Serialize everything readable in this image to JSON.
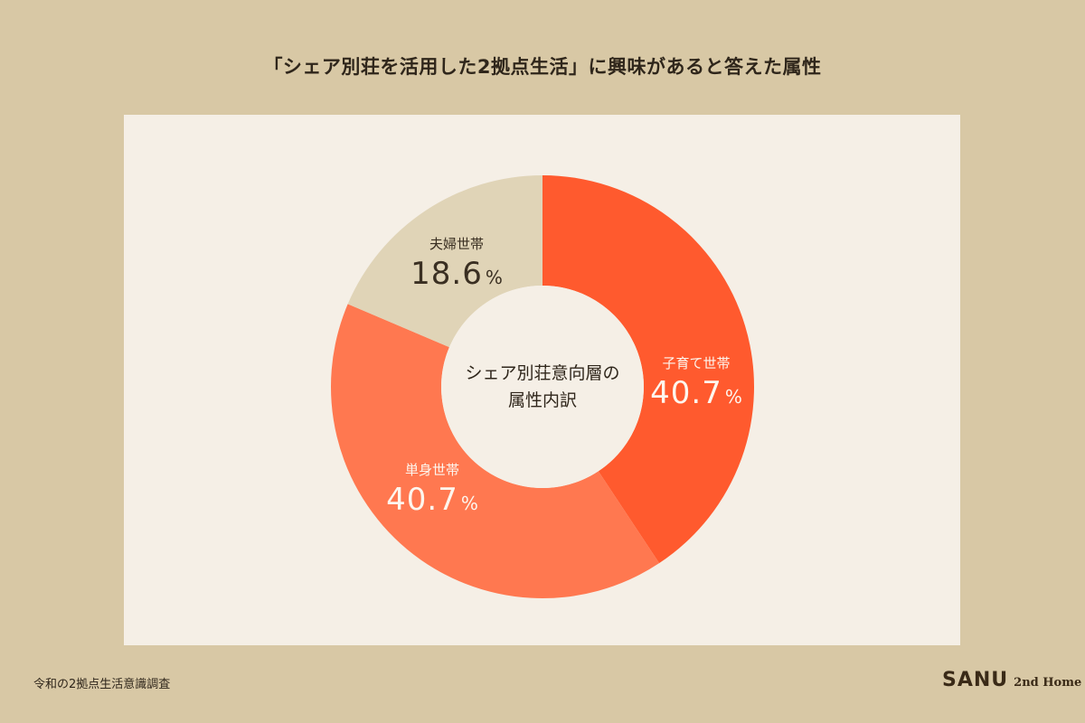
{
  "title": "「シェア別荘を活用した2拠点生活」に興味があると答えた属性",
  "center_label": {
    "line1": "シェア別荘意向層の",
    "line2": "属性内訳"
  },
  "segments": [
    {
      "name": "子育て世帯",
      "value": "40.7",
      "unit": "%",
      "color": "#ff5a2e"
    },
    {
      "name": "単身世帯",
      "value": "40.7",
      "unit": "%",
      "color": "#ff7850"
    },
    {
      "name": "夫婦世帯",
      "value": "18.6",
      "unit": "%",
      "color": "#e0d4b7"
    }
  ],
  "footer": {
    "source": "令和の2拠点生活意識調査",
    "brand": "SANU",
    "brand_sub": "2nd Home"
  },
  "colors": {
    "background": "#d8c8a5",
    "card": "#f5efe6",
    "accent_primary": "#ff5a2e",
    "accent_secondary": "#ff7850",
    "neutral_segment": "#e0d4b7"
  },
  "chart_data": {
    "type": "pie",
    "subtype": "donut",
    "title": "「シェア別荘を活用した2拠点生活」に興味があると答えた属性",
    "center_text": "シェア別荘意向層の属性内訳",
    "categories": [
      "子育て世帯",
      "単身世帯",
      "夫婦世帯"
    ],
    "values": [
      40.7,
      40.7,
      18.6
    ],
    "unit": "%",
    "start_angle": "12 o'clock, clockwise",
    "legend": "inline labels on slices"
  }
}
